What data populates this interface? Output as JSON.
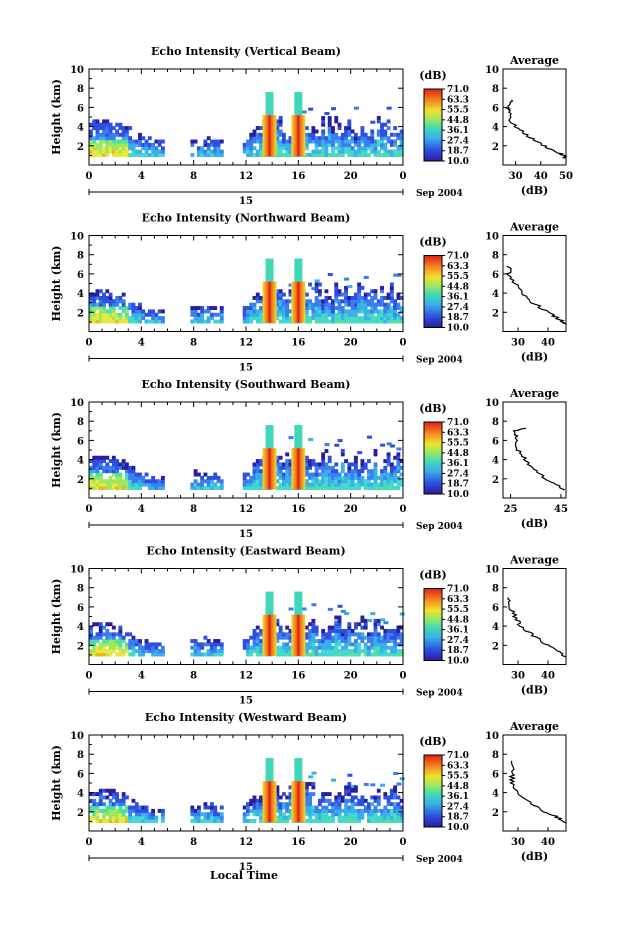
{
  "panels": [
    {
      "title": "Echo Intensity (Vertical Beam)",
      "profile_ticks": [
        "30",
        "40",
        "50"
      ],
      "profile_range": [
        25,
        50
      ],
      "profile_knots": [
        [
          6.8,
          29
        ],
        [
          6.0,
          27
        ],
        [
          5.5,
          28
        ],
        [
          4.5,
          28
        ],
        [
          3.8,
          31
        ],
        [
          3.0,
          35
        ],
        [
          2.2,
          40
        ],
        [
          1.5,
          45
        ],
        [
          1.0,
          49
        ],
        [
          0.7,
          50
        ]
      ]
    },
    {
      "title": "Echo Intensity (Northward Beam)",
      "profile_ticks": [
        "30",
        "40"
      ],
      "profile_range": [
        25,
        46
      ],
      "profile_knots": [
        [
          6.8,
          27
        ],
        [
          6.0,
          27
        ],
        [
          5.0,
          29
        ],
        [
          4.0,
          31
        ],
        [
          3.0,
          35
        ],
        [
          2.0,
          40
        ],
        [
          1.2,
          44
        ],
        [
          0.8,
          46
        ]
      ]
    },
    {
      "title": "Echo Intensity (Southward Beam)",
      "profile_ticks": [
        "25",
        "45"
      ],
      "profile_range": [
        22,
        47
      ],
      "profile_knots": [
        [
          7.3,
          31
        ],
        [
          7.0,
          27
        ],
        [
          6.2,
          27
        ],
        [
          5.0,
          28
        ],
        [
          4.0,
          31
        ],
        [
          3.0,
          34
        ],
        [
          2.0,
          39
        ],
        [
          1.3,
          44
        ],
        [
          0.8,
          46
        ]
      ]
    },
    {
      "title": "Echo Intensity (Eastward Beam)",
      "profile_ticks": [
        "30",
        "40"
      ],
      "profile_range": [
        25,
        46
      ],
      "profile_knots": [
        [
          7.0,
          27
        ],
        [
          6.0,
          27
        ],
        [
          5.0,
          29
        ],
        [
          4.0,
          31
        ],
        [
          3.0,
          35
        ],
        [
          2.0,
          40
        ],
        [
          1.3,
          44
        ],
        [
          0.8,
          46
        ]
      ]
    },
    {
      "title": "Echo Intensity (Westward Beam)",
      "profile_ticks": [
        "30",
        "40"
      ],
      "profile_range": [
        25,
        46
      ],
      "profile_knots": [
        [
          7.3,
          28
        ],
        [
          6.0,
          28
        ],
        [
          5.0,
          28
        ],
        [
          4.0,
          30
        ],
        [
          3.0,
          34
        ],
        [
          2.0,
          39
        ],
        [
          1.3,
          44
        ],
        [
          0.8,
          46
        ]
      ]
    }
  ],
  "y_axis_label": "Height (km)",
  "y_ticks": [
    "2",
    "4",
    "6",
    "8",
    "10"
  ],
  "x_ticks": [
    "0",
    "4",
    "8",
    "12",
    "16",
    "20",
    "0"
  ],
  "date_day": "15",
  "date_label": "Sep 2004",
  "x_axis_label": "Local Time",
  "colorbar_unit": "(dB)",
  "colorbar_ticks": [
    "71.0",
    "63.3",
    "55.5",
    "44.8",
    "36.1",
    "27.4",
    "18.7",
    "10.0"
  ],
  "profile_title": "Average",
  "profile_xlabel": "(dB)",
  "profile_yticks": [
    "2",
    "4",
    "6",
    "8",
    "10"
  ],
  "colors": {
    "low": "#2b2bd4",
    "mid": "#38d0c0",
    "high": "#e82020",
    "axis": "#000000"
  },
  "chart_data": {
    "type": "heatmap",
    "title": "Echo Intensity (Vertical / Northward / Southward / Eastward / Westward Beam)",
    "xlabel": "Local Time",
    "ylabel": "Height (km)",
    "xlim": [
      0,
      24
    ],
    "ylim": [
      0,
      10
    ],
    "colorbar": {
      "unit": "(dB)",
      "min": 10.0,
      "max": 71.0
    },
    "data_gaps_hours": [
      [
        5.7,
        7.6
      ],
      [
        10.2,
        11.7
      ]
    ],
    "strong_echo_columns_hours": [
      13.8,
      16.0
    ],
    "average_profile_units": "(dB)"
  }
}
